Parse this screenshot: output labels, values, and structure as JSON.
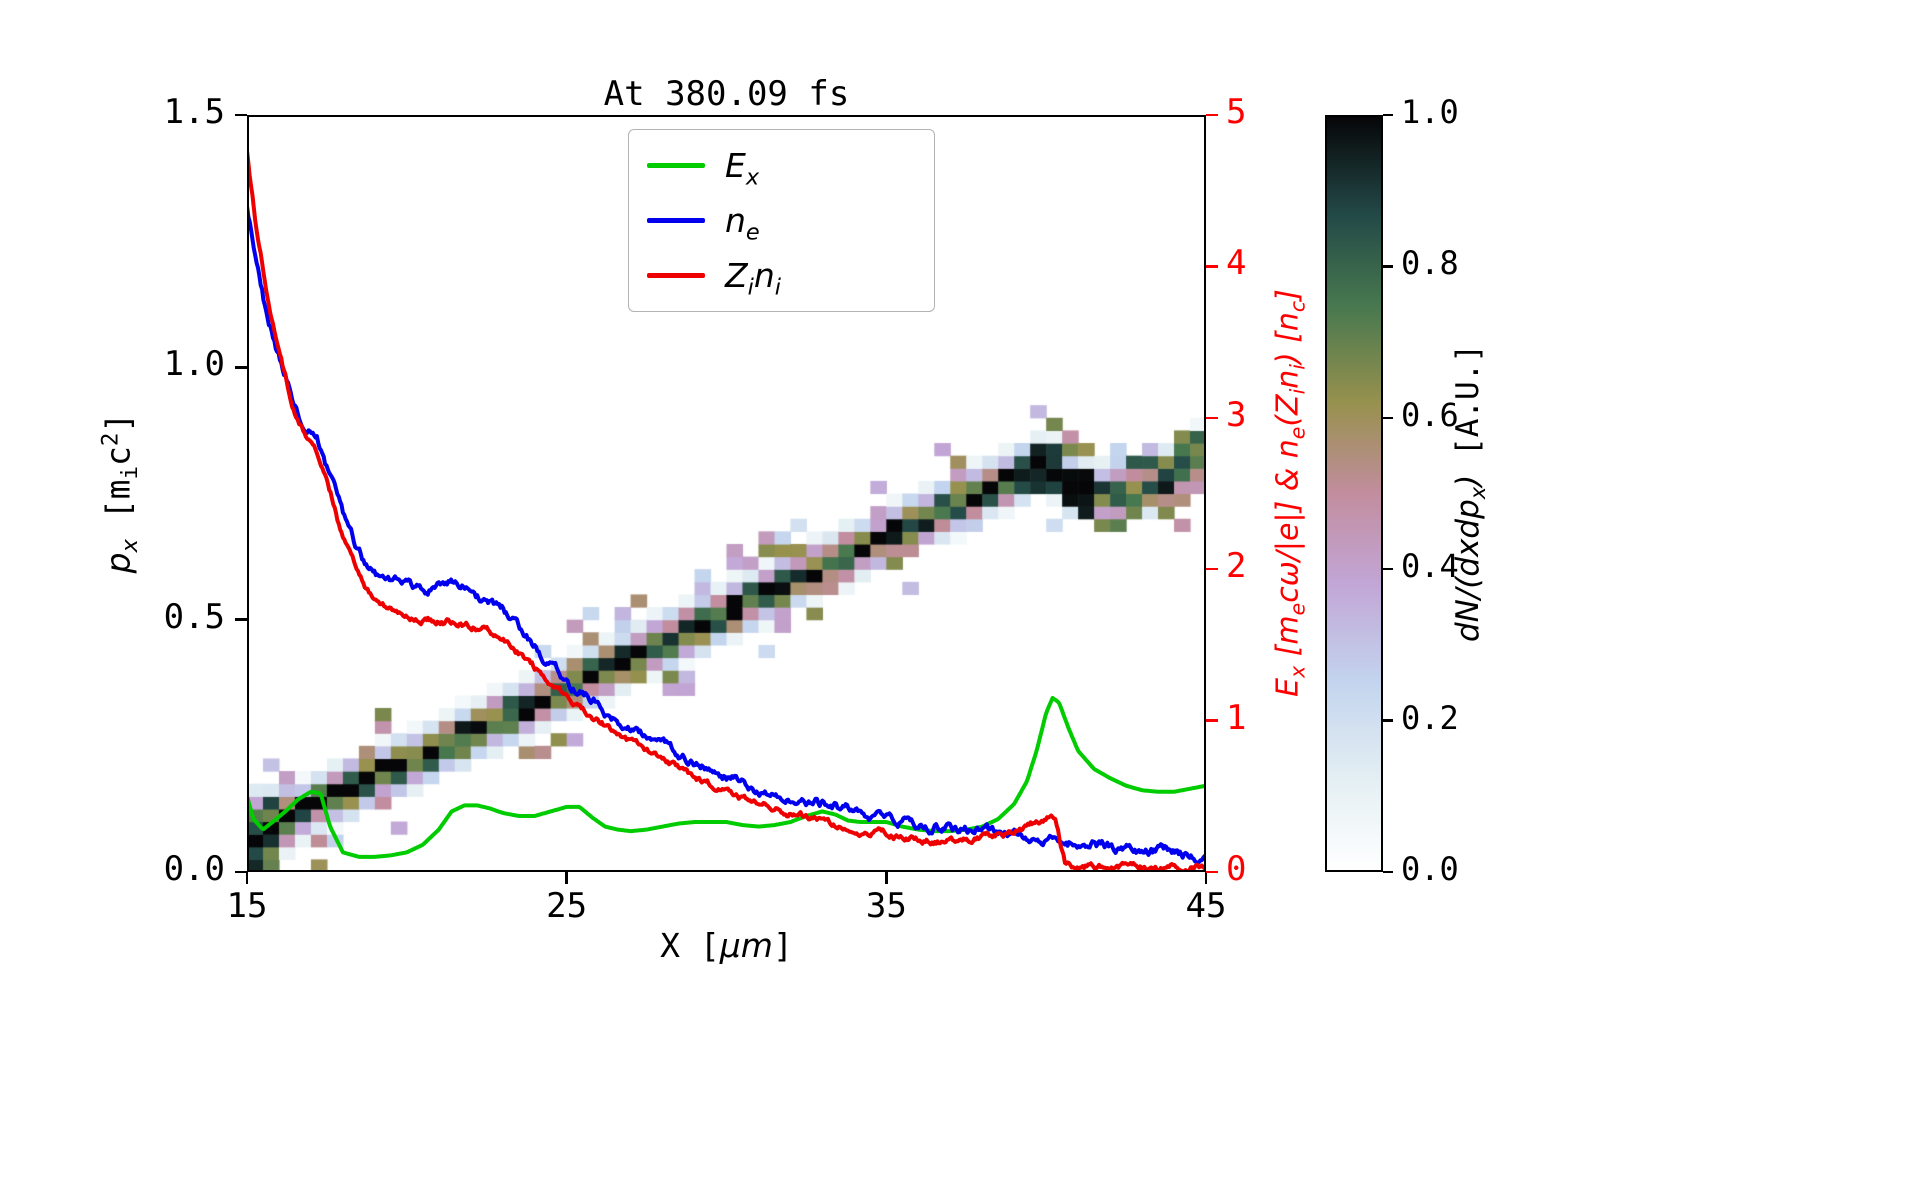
{
  "chart_data": {
    "type": "line+heatmap",
    "title": "At 380.09 fs",
    "axes": {
      "x": {
        "label_parts": [
          {
            "t": "X [",
            "s": "u"
          },
          {
            "t": "μm",
            "s": "m"
          },
          {
            "t": "]",
            "s": "u"
          }
        ],
        "ticks": [
          "15",
          "25",
          "35",
          "45"
        ],
        "tick_values": [
          15,
          25,
          35,
          45
        ],
        "range": [
          15,
          45
        ]
      },
      "y_left": {
        "label_parts": [
          {
            "t": "p_{x}",
            "s": "m"
          },
          {
            "t": " [m_{i}c^{2}]",
            "s": "u"
          }
        ],
        "ticks": [
          "0.0",
          "0.5",
          "1.0",
          "1.5"
        ],
        "tick_values": [
          0,
          0.5,
          1.0,
          1.5
        ],
        "range": [
          0,
          1.5
        ],
        "color": "#000000"
      },
      "y_right": {
        "label_parts": [
          {
            "t": "E_{x} [m_{e}cω/|e|] & n_{e}(Z_{i}n_{i}) [n_{c}]",
            "s": "m"
          }
        ],
        "ticks": [
          "0",
          "1",
          "2",
          "3",
          "4",
          "5"
        ],
        "tick_values": [
          0,
          1,
          2,
          3,
          4,
          5
        ],
        "range": [
          0,
          5
        ],
        "color": "#ff0000"
      }
    },
    "legend": {
      "items": [
        {
          "label": "E_{x}",
          "color": "#00cc00"
        },
        {
          "label": "n_{e}",
          "color": "#0000ee"
        },
        {
          "label": "Z_{i}n_{i}",
          "color": "#ee0000"
        }
      ]
    },
    "series": [
      {
        "name": "E_x",
        "axis": "right",
        "color": "#00cc00",
        "noise": 0,
        "x": [
          15,
          15.2,
          15.5,
          15.8,
          16.2,
          16.6,
          17,
          17.3,
          17.6,
          18,
          18.5,
          19,
          19.5,
          20,
          20.5,
          21,
          21.4,
          21.8,
          22.2,
          22.6,
          23,
          23.5,
          24,
          24.5,
          25,
          25.4,
          25.8,
          26.2,
          26.6,
          27,
          27.5,
          28,
          28.5,
          29,
          29.5,
          30,
          30.5,
          31,
          31.5,
          32,
          32.5,
          33,
          33.4,
          33.8,
          34.2,
          34.6,
          35,
          35.5,
          36,
          36.5,
          37,
          37.5,
          38,
          38.5,
          39,
          39.4,
          39.7,
          40,
          40.2,
          40.4,
          40.7,
          41,
          41.5,
          42,
          42.5,
          43,
          43.5,
          44,
          44.5,
          45
        ],
        "y": [
          0.5,
          0.35,
          0.28,
          0.33,
          0.4,
          0.48,
          0.53,
          0.52,
          0.3,
          0.13,
          0.1,
          0.1,
          0.11,
          0.13,
          0.18,
          0.28,
          0.4,
          0.44,
          0.44,
          0.42,
          0.39,
          0.37,
          0.37,
          0.4,
          0.43,
          0.43,
          0.36,
          0.3,
          0.28,
          0.27,
          0.28,
          0.3,
          0.32,
          0.33,
          0.33,
          0.33,
          0.31,
          0.3,
          0.31,
          0.33,
          0.37,
          0.4,
          0.38,
          0.34,
          0.33,
          0.33,
          0.33,
          0.3,
          0.28,
          0.27,
          0.27,
          0.28,
          0.3,
          0.35,
          0.45,
          0.6,
          0.8,
          1.05,
          1.15,
          1.12,
          0.95,
          0.8,
          0.68,
          0.62,
          0.57,
          0.54,
          0.53,
          0.53,
          0.55,
          0.57
        ]
      },
      {
        "name": "n_e",
        "axis": "right",
        "color": "#0000ee",
        "noise": 0.05,
        "x": [
          15,
          15.3,
          15.6,
          16,
          16.4,
          16.8,
          17.2,
          17.6,
          18,
          18.4,
          18.8,
          19.2,
          19.6,
          20,
          20.5,
          21,
          21.5,
          22,
          22.5,
          23,
          23.5,
          24,
          24.5,
          25,
          25.5,
          26,
          26.5,
          27,
          27.5,
          28,
          28.5,
          29,
          29.5,
          30,
          31,
          32,
          33,
          34,
          35,
          36,
          37,
          38,
          39,
          40,
          41,
          42,
          43,
          44,
          45
        ],
        "y": [
          4.4,
          4.05,
          3.7,
          3.4,
          3.15,
          2.95,
          2.85,
          2.6,
          2.35,
          2.15,
          2.0,
          1.95,
          1.92,
          1.88,
          1.85,
          1.88,
          1.92,
          1.85,
          1.78,
          1.72,
          1.6,
          1.48,
          1.36,
          1.26,
          1.17,
          1.1,
          1.02,
          0.95,
          0.89,
          0.83,
          0.77,
          0.72,
          0.67,
          0.62,
          0.55,
          0.49,
          0.45,
          0.4,
          0.36,
          0.32,
          0.29,
          0.27,
          0.25,
          0.22,
          0.19,
          0.17,
          0.15,
          0.13,
          0.11
        ]
      },
      {
        "name": "Z_i n_i",
        "axis": "right",
        "color": "#ee0000",
        "noise": 0.035,
        "x": [
          15,
          15.3,
          15.6,
          16,
          16.4,
          16.8,
          17.2,
          17.6,
          18,
          18.4,
          18.8,
          19.2,
          19.6,
          20,
          20.5,
          21,
          21.5,
          22,
          22.5,
          23,
          23.5,
          24,
          24.5,
          25,
          25.5,
          26,
          26.5,
          27,
          27.5,
          28,
          28.5,
          29,
          29.5,
          30,
          31,
          32,
          33,
          34,
          35,
          36,
          37,
          38,
          39,
          39.8,
          40.3,
          40.45,
          40.6,
          41,
          42,
          43,
          44,
          45
        ],
        "y": [
          4.77,
          4.25,
          3.85,
          3.45,
          3.1,
          2.9,
          2.75,
          2.5,
          2.2,
          2.0,
          1.85,
          1.78,
          1.73,
          1.7,
          1.68,
          1.66,
          1.65,
          1.63,
          1.6,
          1.55,
          1.45,
          1.35,
          1.25,
          1.15,
          1.07,
          1.0,
          0.93,
          0.86,
          0.8,
          0.74,
          0.68,
          0.63,
          0.58,
          0.53,
          0.45,
          0.39,
          0.34,
          0.29,
          0.25,
          0.22,
          0.21,
          0.22,
          0.26,
          0.33,
          0.37,
          0.2,
          0.06,
          0.04,
          0.03,
          0.03,
          0.03,
          0.03
        ]
      }
    ],
    "heatmap": {
      "x_range": [
        15,
        45
      ],
      "p_range": [
        0,
        1.5
      ],
      "cells_x": 60,
      "cells_p": 60,
      "band_sigma": 0.028,
      "ridge_x": [
        15.3,
        16,
        17,
        18,
        19,
        20,
        21,
        22,
        23,
        24,
        25,
        26,
        27,
        28,
        29,
        30,
        31,
        32,
        33,
        34,
        35,
        36,
        37,
        38,
        39,
        39.6,
        40.1,
        40.6,
        41,
        42,
        43,
        44,
        45
      ],
      "ridge_p": [
        0.07,
        0.1,
        0.13,
        0.16,
        0.19,
        0.215,
        0.245,
        0.275,
        0.305,
        0.335,
        0.365,
        0.395,
        0.425,
        0.455,
        0.485,
        0.515,
        0.545,
        0.575,
        0.605,
        0.635,
        0.665,
        0.695,
        0.725,
        0.755,
        0.78,
        0.8,
        0.81,
        0.77,
        0.755,
        0.75,
        0.76,
        0.79,
        0.83
      ],
      "blob_x": 40.3
    },
    "colorbar": {
      "label_parts": [
        {
          "t": "dN/(dxdp_{x})",
          "s": "m"
        },
        {
          "t": " [A.U.]",
          "s": "u"
        }
      ],
      "ticks": [
        "0.0",
        "0.2",
        "0.4",
        "0.6",
        "0.8",
        "1.0"
      ],
      "tick_values": [
        0,
        0.2,
        0.4,
        0.6,
        0.8,
        1.0
      ],
      "range": [
        0,
        1
      ],
      "stops": [
        [
          0,
          "#ffffff"
        ],
        [
          0.12,
          "#e4eff3"
        ],
        [
          0.25,
          "#c3d4ee"
        ],
        [
          0.38,
          "#c2a6d6"
        ],
        [
          0.5,
          "#c28d9e"
        ],
        [
          0.62,
          "#97914e"
        ],
        [
          0.75,
          "#47784f"
        ],
        [
          0.87,
          "#234947"
        ],
        [
          1,
          "#060608"
        ]
      ]
    }
  }
}
